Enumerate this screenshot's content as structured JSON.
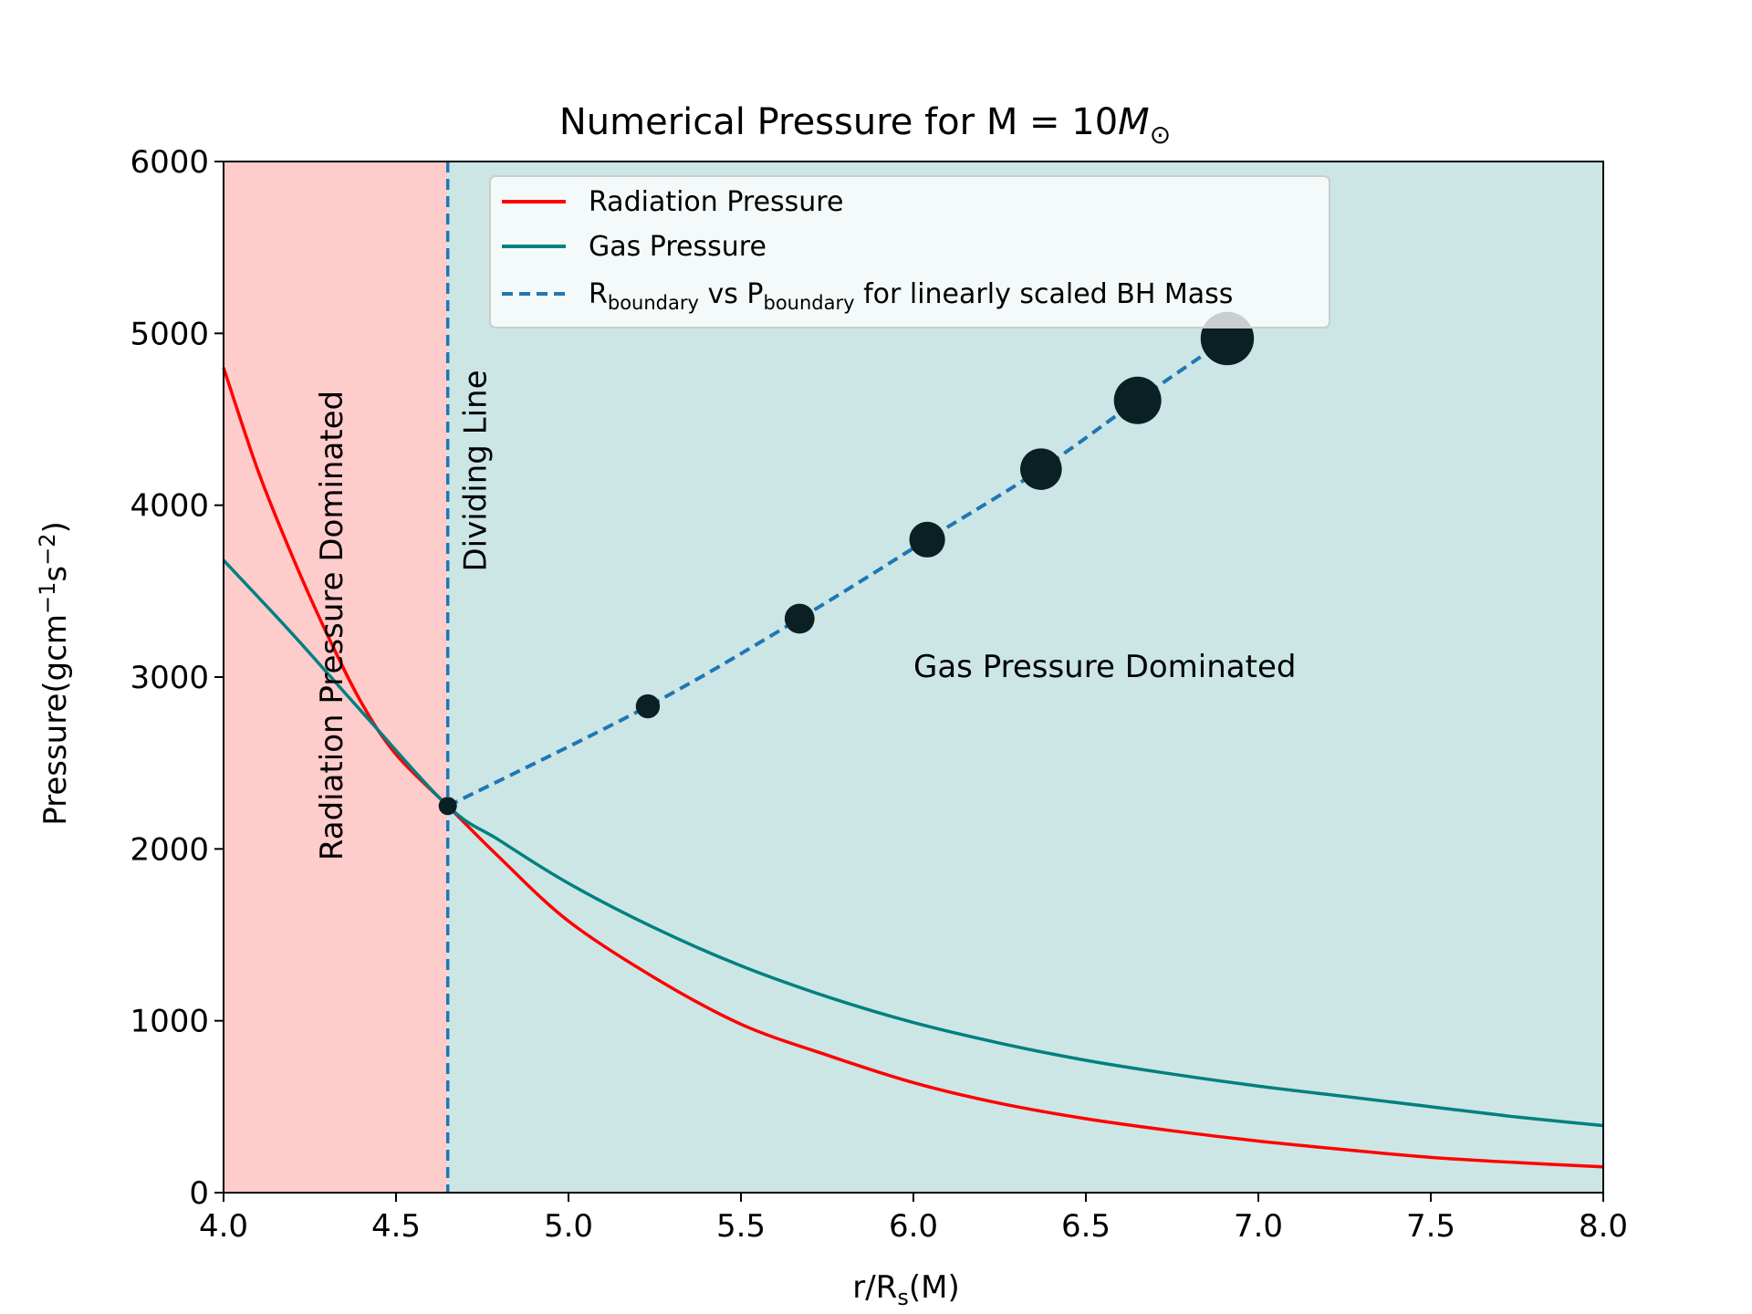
{
  "chart_data": {
    "type": "line",
    "title_main": "Numerical Pressure for M = 10",
    "title_symbol": "M",
    "title_symbol_sub": "⊙",
    "xlabel_main": "r/R",
    "xlabel_sub": "s",
    "xlabel_tail": "(M)",
    "ylabel_main": "Pressure(gcm",
    "ylabel_sup1": "−1",
    "ylabel_mid": "s",
    "ylabel_sup2": "−2",
    "ylabel_tail": ")",
    "xlim": [
      4.0,
      8.0
    ],
    "ylim": [
      0,
      6000
    ],
    "xticks": [
      "4.0",
      "4.5",
      "5.0",
      "5.5",
      "6.0",
      "6.5",
      "7.0",
      "7.5",
      "8.0"
    ],
    "yticks": [
      "0",
      "1000",
      "2000",
      "3000",
      "4000",
      "5000",
      "6000"
    ],
    "grid": false,
    "legend_position": "top-right",
    "colors": {
      "radiation": "#ff0000",
      "gas": "#008080",
      "boundary": "#1f77b4",
      "radiation_region": "#ffcccc",
      "gas_region": "#cce6e6",
      "points": "#0a2024"
    },
    "series": [
      {
        "name": "Radiation Pressure",
        "x": [
          4.0,
          4.1,
          4.2,
          4.3,
          4.4,
          4.5,
          4.65,
          4.8,
          5.0,
          5.25,
          5.5,
          5.75,
          6.0,
          6.25,
          6.5,
          6.75,
          7.0,
          7.25,
          7.5,
          7.75,
          8.0
        ],
        "y": [
          4800,
          4200,
          3700,
          3250,
          2850,
          2550,
          2250,
          1950,
          1580,
          1250,
          980,
          800,
          640,
          520,
          430,
          360,
          300,
          250,
          205,
          175,
          150
        ]
      },
      {
        "name": "Gas Pressure",
        "x": [
          4.0,
          4.2,
          4.4,
          4.65,
          4.8,
          5.0,
          5.25,
          5.5,
          5.75,
          6.0,
          6.25,
          6.5,
          6.75,
          7.0,
          7.25,
          7.5,
          7.75,
          8.0
        ],
        "y": [
          3680,
          3250,
          2800,
          2250,
          2050,
          1800,
          1540,
          1320,
          1140,
          990,
          870,
          770,
          690,
          620,
          560,
          500,
          440,
          390
        ]
      }
    ],
    "legend_boundary": {
      "r": "R",
      "r_sub": "boundary",
      "mid": " vs ",
      "p": "P",
      "p_sub": "boundary",
      "tail": " for linearly scaled BH Mass"
    },
    "boundary_points": {
      "x": [
        4.65,
        5.23,
        5.67,
        6.04,
        6.37,
        6.65,
        6.91
      ],
      "y": [
        2250,
        2830,
        3340,
        3800,
        4210,
        4610,
        4970
      ]
    },
    "dividing_x": 4.65,
    "annotations": {
      "radiation_region": "Radiation Pressure Dominated",
      "gas_region": "Gas Pressure Dominated",
      "dividing_line": "Dividing Line"
    }
  }
}
